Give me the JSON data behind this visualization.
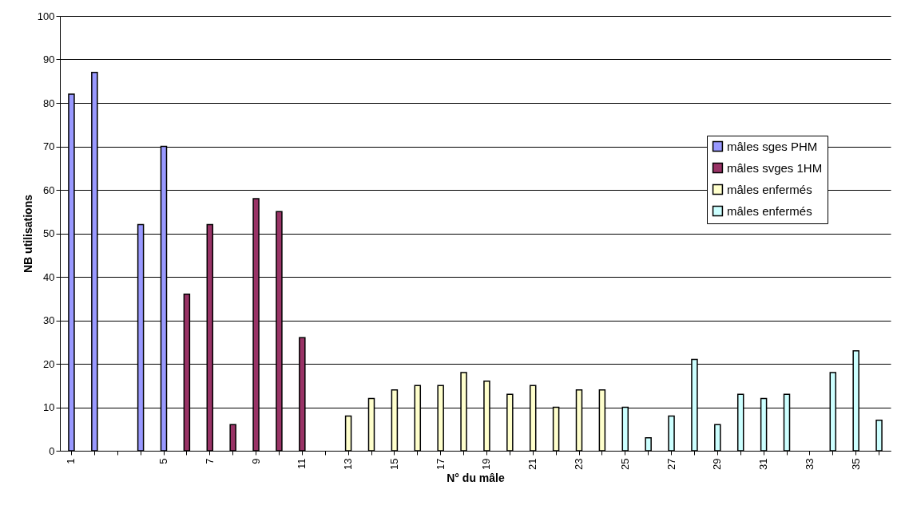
{
  "chart_data": {
    "type": "bar",
    "xlabel": "N° du mâle",
    "ylabel": "NB utilisations",
    "categories": [
      "1",
      null,
      null,
      null,
      "5",
      null,
      "7",
      null,
      "9",
      null,
      "11",
      null,
      "13",
      null,
      "15",
      null,
      "17",
      null,
      "19",
      null,
      "21",
      null,
      "23",
      null,
      "25",
      null,
      "27",
      null,
      "29",
      null,
      "31",
      null,
      "33",
      null,
      "35",
      null
    ],
    "series": [
      {
        "name": "mâles sges PHM",
        "color": "#9999ff",
        "values": [
          82,
          87,
          null,
          52,
          70,
          null,
          null,
          null,
          null,
          null,
          null,
          null,
          null,
          null,
          null,
          null,
          null,
          null,
          null,
          null,
          null,
          null,
          null,
          null,
          null,
          null,
          null,
          null,
          null,
          null,
          null,
          null,
          null,
          null,
          null,
          null
        ]
      },
      {
        "name": "mâles svges 1HM",
        "color": "#993366",
        "values": [
          null,
          null,
          null,
          null,
          null,
          36,
          52,
          6,
          58,
          55,
          26,
          null,
          null,
          null,
          null,
          null,
          null,
          null,
          null,
          null,
          null,
          null,
          null,
          null,
          null,
          null,
          null,
          null,
          null,
          null,
          null,
          null,
          null,
          null,
          null,
          null
        ]
      },
      {
        "name": "mâles enfermés",
        "color": "#ffffcc",
        "values": [
          null,
          null,
          null,
          null,
          null,
          null,
          null,
          null,
          null,
          null,
          null,
          null,
          8,
          12,
          14,
          15,
          15,
          18,
          16,
          13,
          15,
          10,
          14,
          14,
          null,
          null,
          null,
          null,
          null,
          null,
          null,
          null,
          null,
          null,
          null,
          null
        ]
      },
      {
        "name": "mâles enfermés",
        "color": "#ccffff",
        "values": [
          null,
          null,
          null,
          null,
          null,
          null,
          null,
          null,
          null,
          null,
          null,
          null,
          null,
          null,
          null,
          null,
          null,
          null,
          null,
          null,
          null,
          null,
          null,
          null,
          10,
          3,
          8,
          21,
          6,
          13,
          12,
          13,
          null,
          18,
          23,
          7
        ]
      }
    ],
    "ylim": [
      0,
      100
    ],
    "yticks": [
      0,
      10,
      20,
      30,
      40,
      50,
      60,
      70,
      80,
      90,
      100
    ],
    "grid": "y",
    "legend": "right"
  }
}
